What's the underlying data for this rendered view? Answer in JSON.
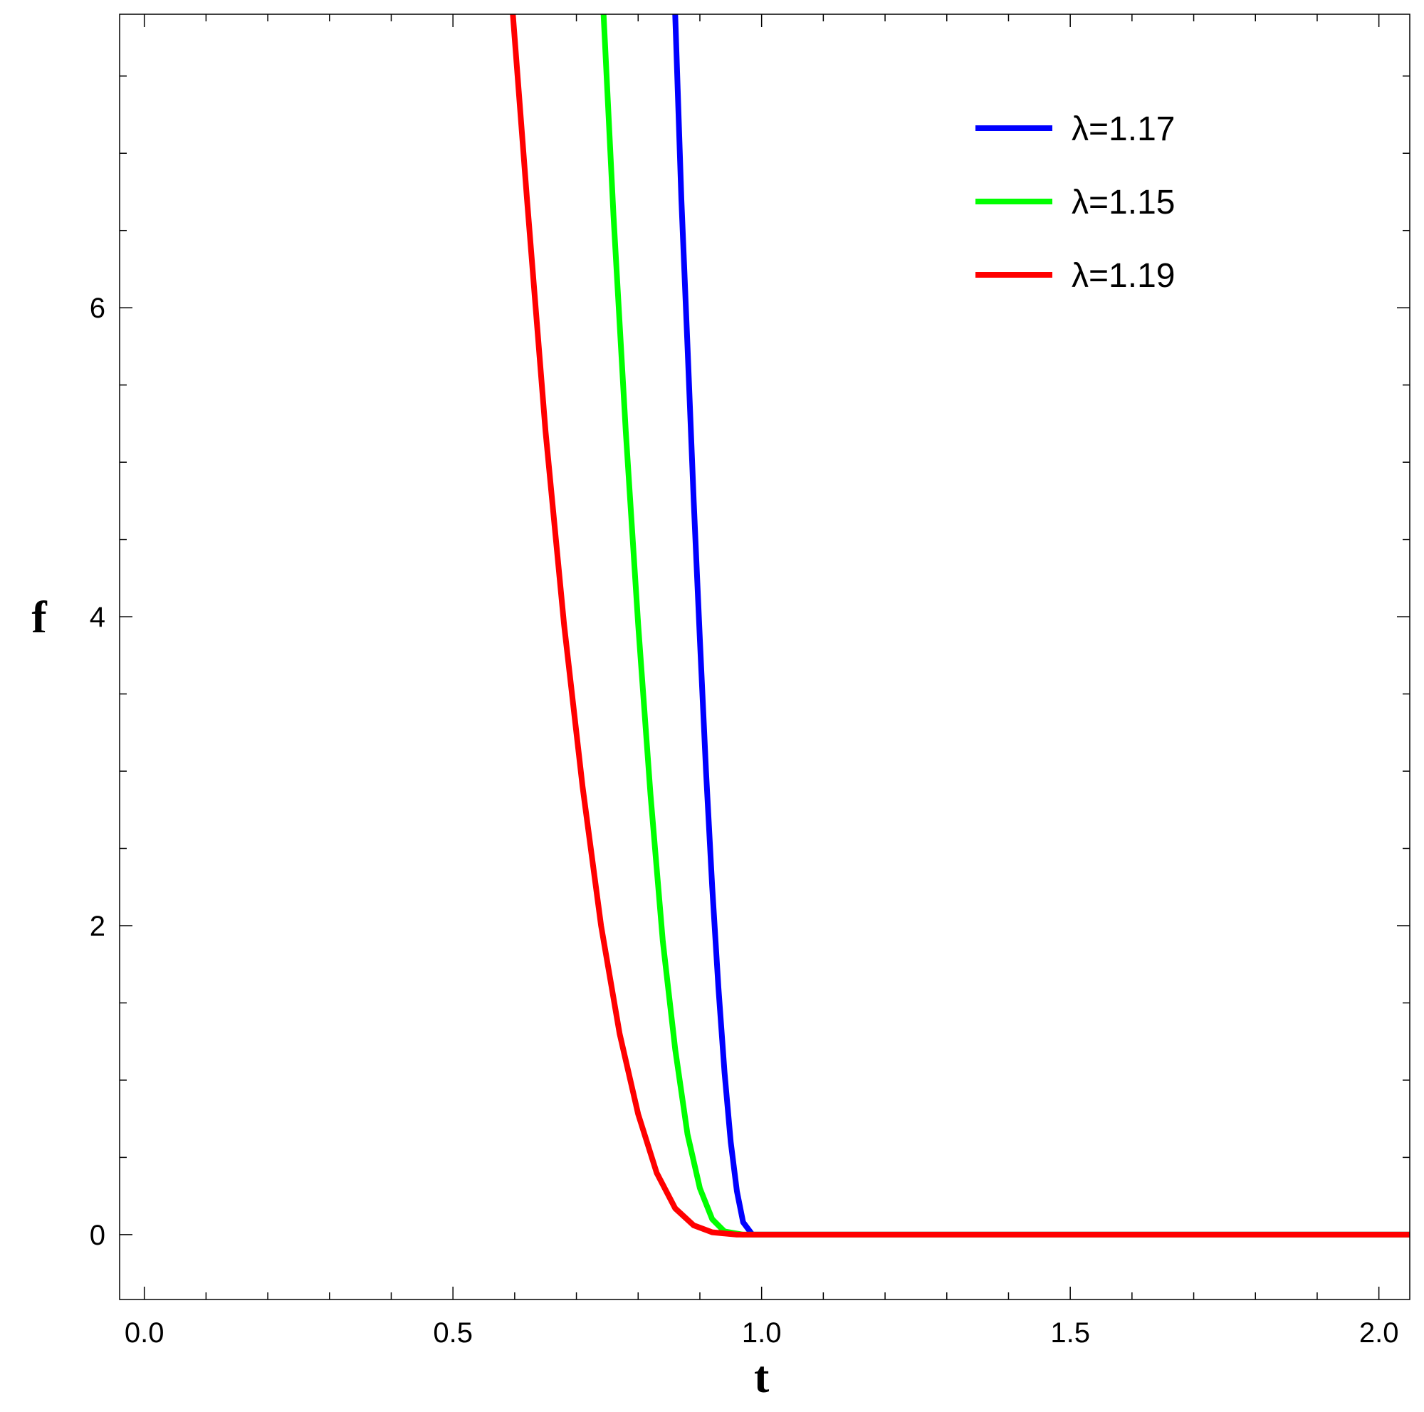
{
  "chart_data": {
    "type": "line",
    "title": "",
    "xlabel": "t",
    "ylabel": "f",
    "xlim": [
      -0.04,
      2.05
    ],
    "ylim": [
      -0.42,
      7.9
    ],
    "x_ticks": [
      {
        "value": 0.0,
        "label": "0.0"
      },
      {
        "value": 0.5,
        "label": "0.5"
      },
      {
        "value": 1.0,
        "label": "1.0"
      },
      {
        "value": 1.5,
        "label": "1.5"
      },
      {
        "value": 2.0,
        "label": "2.0"
      }
    ],
    "y_ticks": [
      {
        "value": 0,
        "label": "0"
      },
      {
        "value": 2,
        "label": "2"
      },
      {
        "value": 4,
        "label": "4"
      },
      {
        "value": 6,
        "label": "6"
      }
    ],
    "x_minor_step": 0.1,
    "y_minor_step": 0.5,
    "grid": false,
    "legend_position": "top-right",
    "series": [
      {
        "name": "λ=1.17",
        "color": "#0000ff",
        "points": [
          [
            0.86,
            7.9
          ],
          [
            0.87,
            6.7
          ],
          [
            0.88,
            5.75
          ],
          [
            0.89,
            4.75
          ],
          [
            0.9,
            3.85
          ],
          [
            0.91,
            3.0
          ],
          [
            0.92,
            2.25
          ],
          [
            0.93,
            1.6
          ],
          [
            0.94,
            1.05
          ],
          [
            0.95,
            0.6
          ],
          [
            0.96,
            0.28
          ],
          [
            0.97,
            0.08
          ],
          [
            0.985,
            0.0
          ],
          [
            2.05,
            0.0
          ]
        ]
      },
      {
        "name": "λ=1.15",
        "color": "#00ff00",
        "points": [
          [
            0.744,
            7.9
          ],
          [
            0.76,
            6.6
          ],
          [
            0.78,
            5.2
          ],
          [
            0.8,
            3.95
          ],
          [
            0.82,
            2.85
          ],
          [
            0.84,
            1.9
          ],
          [
            0.86,
            1.2
          ],
          [
            0.88,
            0.65
          ],
          [
            0.9,
            0.3
          ],
          [
            0.92,
            0.1
          ],
          [
            0.94,
            0.02
          ],
          [
            0.97,
            0.0
          ],
          [
            2.05,
            0.0
          ]
        ]
      },
      {
        "name": "λ=1.19",
        "color": "#ff0000",
        "points": [
          [
            0.597,
            7.9
          ],
          [
            0.62,
            6.7
          ],
          [
            0.65,
            5.2
          ],
          [
            0.68,
            3.95
          ],
          [
            0.71,
            2.9
          ],
          [
            0.74,
            2.0
          ],
          [
            0.77,
            1.3
          ],
          [
            0.8,
            0.78
          ],
          [
            0.83,
            0.4
          ],
          [
            0.86,
            0.17
          ],
          [
            0.89,
            0.06
          ],
          [
            0.92,
            0.015
          ],
          [
            0.96,
            0.0
          ],
          [
            2.05,
            0.0
          ]
        ]
      }
    ]
  }
}
